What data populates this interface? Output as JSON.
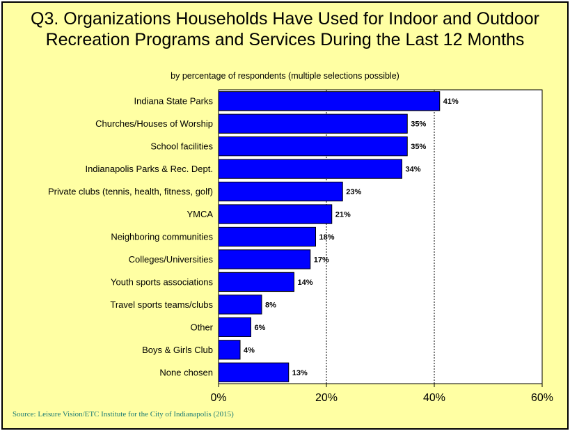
{
  "title_line1": "Q3. Organizations Households Have Used for Indoor and Outdoor",
  "title_line2": "Recreation Programs and Services During the Last 12 Months",
  "subtitle": "by percentage of respondents (multiple selections possible)",
  "source": "Source:  Leisure Vision/ETC Institute for the City of Indianapolis (2015)",
  "colors": {
    "background": "#ffffa3",
    "plot_area": "#ffffff",
    "bar": "#0000ff"
  },
  "chart_data": {
    "type": "bar",
    "orientation": "horizontal",
    "categories": [
      "Indiana State Parks",
      "Churches/Houses of Worship",
      "School facilities",
      "Indianapolis Parks & Rec. Dept.",
      "Private clubs (tennis, health, fitness, golf)",
      "YMCA",
      "Neighboring communities",
      "Colleges/Universities",
      "Youth sports associations",
      "Travel sports teams/clubs",
      "Other",
      "Boys & Girls Club",
      "None chosen"
    ],
    "values": [
      41,
      35,
      35,
      34,
      23,
      21,
      18,
      17,
      14,
      8,
      6,
      4,
      13
    ],
    "value_labels": [
      "41%",
      "35%",
      "35%",
      "34%",
      "23%",
      "21%",
      "18%",
      "17%",
      "14%",
      "8%",
      "6%",
      "4%",
      "13%"
    ],
    "xlim": [
      0,
      60
    ],
    "xticks": [
      0,
      20,
      40,
      60
    ],
    "xtick_labels": [
      "0%",
      "20%",
      "40%",
      "60%"
    ],
    "grid": "vertical dashed at 20% and 40%",
    "legend": "none"
  }
}
